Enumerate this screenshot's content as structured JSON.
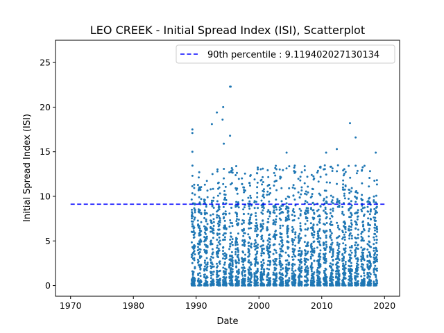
{
  "chart_data": {
    "type": "scatter",
    "title": "LEO CREEK - Initial Spread Index (ISI), Scatterplot",
    "xlabel": "Date",
    "ylabel": "Initial Spread Index (ISI)",
    "xlim": [
      1967.6,
      2022.4
    ],
    "ylim": [
      -1.2,
      27.5
    ],
    "x_ticks": [
      1970,
      1980,
      1990,
      2000,
      2010,
      2020
    ],
    "y_ticks": [
      0,
      5,
      10,
      15,
      20,
      25
    ],
    "grid": false,
    "legend_position": "top-right",
    "point_color": "#1f77b4",
    "line_color": "#0000ff",
    "percentile": {
      "label": "90th percentile : 9.119402027130134",
      "value": 9.119402027130134,
      "x_start": 1970,
      "x_end": 2020
    },
    "season_years": [
      1989,
      1990,
      1991,
      1992,
      1993,
      1994,
      1995,
      1996,
      1997,
      1998,
      1999,
      2000,
      2001,
      2002,
      2003,
      2004,
      2005,
      2006,
      2007,
      2008,
      2009,
      2010,
      2011,
      2012,
      2013,
      2014,
      2015,
      2016,
      2017,
      2018
    ],
    "highlighted_points": [
      {
        "x": 1989.4,
        "y": 17.5
      },
      {
        "x": 1989.4,
        "y": 17.1
      },
      {
        "x": 1989.4,
        "y": 15.0
      },
      {
        "x": 1992.5,
        "y": 18.1
      },
      {
        "x": 1993.3,
        "y": 19.4
      },
      {
        "x": 1994.2,
        "y": 18.6
      },
      {
        "x": 1994.3,
        "y": 20.0
      },
      {
        "x": 1995.4,
        "y": 22.3
      },
      {
        "x": 1995.5,
        "y": 22.3
      },
      {
        "x": 1995.4,
        "y": 16.8
      },
      {
        "x": 1994.4,
        "y": 15.9
      },
      {
        "x": 2004.4,
        "y": 14.9
      },
      {
        "x": 2010.7,
        "y": 14.9
      },
      {
        "x": 2012.4,
        "y": 15.3
      },
      {
        "x": 2014.5,
        "y": 18.2
      },
      {
        "x": 2015.4,
        "y": 16.6
      },
      {
        "x": 2018.6,
        "y": 14.9
      }
    ]
  }
}
